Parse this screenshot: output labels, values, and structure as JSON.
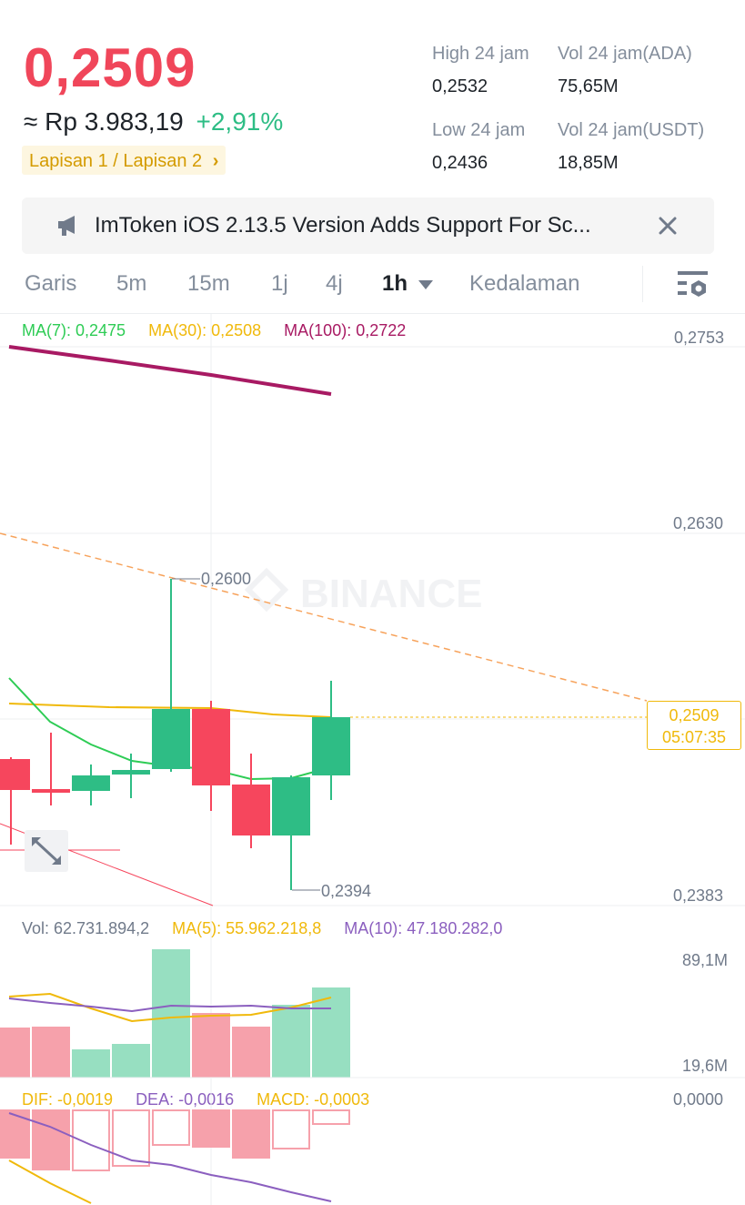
{
  "ticker": {
    "last_price": "0,2509",
    "fiat_price": "≈ Rp 3.983,19",
    "change_pct": "+2,91%",
    "layer_tag": "Lapisan 1 / Lapisan 2",
    "layer_chevron": "›"
  },
  "stats": {
    "high_label": "High 24 jam",
    "high_value": "0,2532",
    "vol_ada_label": "Vol 24 jam(ADA)",
    "vol_ada_value": "75,65M",
    "low_label": "Low 24 jam",
    "low_value": "0,2436",
    "vol_usdt_label": "Vol 24 jam(USDT)",
    "vol_usdt_value": "18,85M"
  },
  "news": {
    "icon": "megaphone-icon",
    "text": "ImToken iOS 2.13.5 Version Adds Support For Sc...",
    "close_icon": "close-icon"
  },
  "tabs": {
    "items": [
      "Garis",
      "5m",
      "15m",
      "1j",
      "4j",
      "1h",
      "Kedalaman"
    ],
    "active": "1h",
    "settings_icon": "chart-settings-icon"
  },
  "main_chart": {
    "ma7": "MA(7): 0,2475",
    "ma30": "MA(30): 0,2508",
    "ma100": "MA(100): 0,2722",
    "axis_top": "0,2753",
    "axis_mid": "0,2630",
    "axis_bottom": "0,2383",
    "high_marker": "0,2600",
    "low_marker": "0,2394",
    "current_price": "0,2509",
    "countdown": "05:07:35",
    "watermark": "BINANCE"
  },
  "volume": {
    "vol": "Vol: 62.731.894,2",
    "ma5": "MA(5): 55.962.218,8",
    "ma10": "MA(10): 47.180.282,0",
    "axis_top": "89,1M",
    "axis_bottom": "19,6M"
  },
  "macd": {
    "dif": "DIF: -0,0019",
    "dea": "DEA: -0,0016",
    "macd": "MACD: -0,0003",
    "axis_top": "0,0000"
  },
  "colors": {
    "up": "#2ebd85",
    "down": "#f6465d",
    "ma7": "#2ecc55",
    "ma30": "#f0b90b",
    "ma100": "#a81a63",
    "ma10": "#8b5fbf"
  }
}
